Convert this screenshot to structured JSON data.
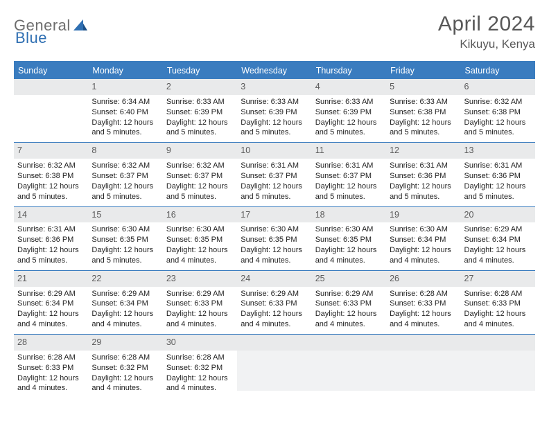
{
  "logo": {
    "part1": "General",
    "part2": "Blue"
  },
  "title": "April 2024",
  "location": "Kikuyu, Kenya",
  "colors": {
    "header_bg": "#3a7cbf",
    "header_text": "#ffffff",
    "daynum_bg": "#e9eaeb",
    "daynum_text": "#5a5a5a",
    "body_text": "#222222",
    "page_bg": "#ffffff",
    "logo_gray": "#6d6d6d",
    "logo_blue": "#2f6fb2",
    "trailing_bg": "#f1f2f3"
  },
  "day_headers": [
    "Sunday",
    "Monday",
    "Tuesday",
    "Wednesday",
    "Thursday",
    "Friday",
    "Saturday"
  ],
  "weeks": [
    [
      {
        "blank": true
      },
      {
        "n": "1",
        "sr": "Sunrise: 6:34 AM",
        "ss": "Sunset: 6:40 PM",
        "d1": "Daylight: 12 hours",
        "d2": "and 5 minutes."
      },
      {
        "n": "2",
        "sr": "Sunrise: 6:33 AM",
        "ss": "Sunset: 6:39 PM",
        "d1": "Daylight: 12 hours",
        "d2": "and 5 minutes."
      },
      {
        "n": "3",
        "sr": "Sunrise: 6:33 AM",
        "ss": "Sunset: 6:39 PM",
        "d1": "Daylight: 12 hours",
        "d2": "and 5 minutes."
      },
      {
        "n": "4",
        "sr": "Sunrise: 6:33 AM",
        "ss": "Sunset: 6:39 PM",
        "d1": "Daylight: 12 hours",
        "d2": "and 5 minutes."
      },
      {
        "n": "5",
        "sr": "Sunrise: 6:33 AM",
        "ss": "Sunset: 6:38 PM",
        "d1": "Daylight: 12 hours",
        "d2": "and 5 minutes."
      },
      {
        "n": "6",
        "sr": "Sunrise: 6:32 AM",
        "ss": "Sunset: 6:38 PM",
        "d1": "Daylight: 12 hours",
        "d2": "and 5 minutes."
      }
    ],
    [
      {
        "n": "7",
        "sr": "Sunrise: 6:32 AM",
        "ss": "Sunset: 6:38 PM",
        "d1": "Daylight: 12 hours",
        "d2": "and 5 minutes."
      },
      {
        "n": "8",
        "sr": "Sunrise: 6:32 AM",
        "ss": "Sunset: 6:37 PM",
        "d1": "Daylight: 12 hours",
        "d2": "and 5 minutes."
      },
      {
        "n": "9",
        "sr": "Sunrise: 6:32 AM",
        "ss": "Sunset: 6:37 PM",
        "d1": "Daylight: 12 hours",
        "d2": "and 5 minutes."
      },
      {
        "n": "10",
        "sr": "Sunrise: 6:31 AM",
        "ss": "Sunset: 6:37 PM",
        "d1": "Daylight: 12 hours",
        "d2": "and 5 minutes."
      },
      {
        "n": "11",
        "sr": "Sunrise: 6:31 AM",
        "ss": "Sunset: 6:37 PM",
        "d1": "Daylight: 12 hours",
        "d2": "and 5 minutes."
      },
      {
        "n": "12",
        "sr": "Sunrise: 6:31 AM",
        "ss": "Sunset: 6:36 PM",
        "d1": "Daylight: 12 hours",
        "d2": "and 5 minutes."
      },
      {
        "n": "13",
        "sr": "Sunrise: 6:31 AM",
        "ss": "Sunset: 6:36 PM",
        "d1": "Daylight: 12 hours",
        "d2": "and 5 minutes."
      }
    ],
    [
      {
        "n": "14",
        "sr": "Sunrise: 6:31 AM",
        "ss": "Sunset: 6:36 PM",
        "d1": "Daylight: 12 hours",
        "d2": "and 5 minutes."
      },
      {
        "n": "15",
        "sr": "Sunrise: 6:30 AM",
        "ss": "Sunset: 6:35 PM",
        "d1": "Daylight: 12 hours",
        "d2": "and 5 minutes."
      },
      {
        "n": "16",
        "sr": "Sunrise: 6:30 AM",
        "ss": "Sunset: 6:35 PM",
        "d1": "Daylight: 12 hours",
        "d2": "and 4 minutes."
      },
      {
        "n": "17",
        "sr": "Sunrise: 6:30 AM",
        "ss": "Sunset: 6:35 PM",
        "d1": "Daylight: 12 hours",
        "d2": "and 4 minutes."
      },
      {
        "n": "18",
        "sr": "Sunrise: 6:30 AM",
        "ss": "Sunset: 6:35 PM",
        "d1": "Daylight: 12 hours",
        "d2": "and 4 minutes."
      },
      {
        "n": "19",
        "sr": "Sunrise: 6:30 AM",
        "ss": "Sunset: 6:34 PM",
        "d1": "Daylight: 12 hours",
        "d2": "and 4 minutes."
      },
      {
        "n": "20",
        "sr": "Sunrise: 6:29 AM",
        "ss": "Sunset: 6:34 PM",
        "d1": "Daylight: 12 hours",
        "d2": "and 4 minutes."
      }
    ],
    [
      {
        "n": "21",
        "sr": "Sunrise: 6:29 AM",
        "ss": "Sunset: 6:34 PM",
        "d1": "Daylight: 12 hours",
        "d2": "and 4 minutes."
      },
      {
        "n": "22",
        "sr": "Sunrise: 6:29 AM",
        "ss": "Sunset: 6:34 PM",
        "d1": "Daylight: 12 hours",
        "d2": "and 4 minutes."
      },
      {
        "n": "23",
        "sr": "Sunrise: 6:29 AM",
        "ss": "Sunset: 6:33 PM",
        "d1": "Daylight: 12 hours",
        "d2": "and 4 minutes."
      },
      {
        "n": "24",
        "sr": "Sunrise: 6:29 AM",
        "ss": "Sunset: 6:33 PM",
        "d1": "Daylight: 12 hours",
        "d2": "and 4 minutes."
      },
      {
        "n": "25",
        "sr": "Sunrise: 6:29 AM",
        "ss": "Sunset: 6:33 PM",
        "d1": "Daylight: 12 hours",
        "d2": "and 4 minutes."
      },
      {
        "n": "26",
        "sr": "Sunrise: 6:28 AM",
        "ss": "Sunset: 6:33 PM",
        "d1": "Daylight: 12 hours",
        "d2": "and 4 minutes."
      },
      {
        "n": "27",
        "sr": "Sunrise: 6:28 AM",
        "ss": "Sunset: 6:33 PM",
        "d1": "Daylight: 12 hours",
        "d2": "and 4 minutes."
      }
    ],
    [
      {
        "n": "28",
        "sr": "Sunrise: 6:28 AM",
        "ss": "Sunset: 6:33 PM",
        "d1": "Daylight: 12 hours",
        "d2": "and 4 minutes."
      },
      {
        "n": "29",
        "sr": "Sunrise: 6:28 AM",
        "ss": "Sunset: 6:32 PM",
        "d1": "Daylight: 12 hours",
        "d2": "and 4 minutes."
      },
      {
        "n": "30",
        "sr": "Sunrise: 6:28 AM",
        "ss": "Sunset: 6:32 PM",
        "d1": "Daylight: 12 hours",
        "d2": "and 4 minutes."
      },
      {
        "trailing": true
      },
      {
        "trailing": true
      },
      {
        "trailing": true
      },
      {
        "trailing": true
      }
    ]
  ]
}
